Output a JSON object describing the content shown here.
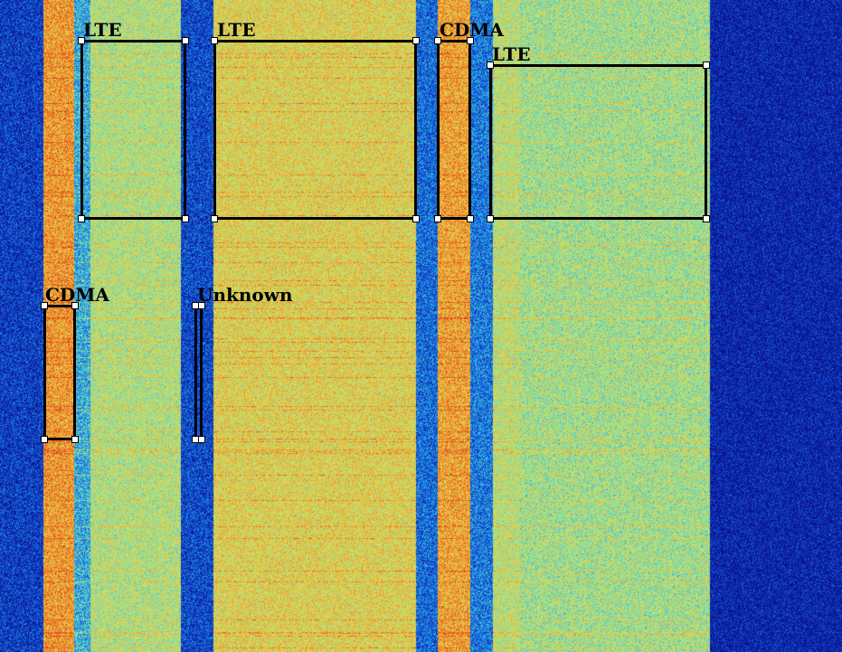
{
  "annotations": [
    {
      "label": "LTE"
    },
    {
      "label": "LTE"
    },
    {
      "label": "CDMA"
    },
    {
      "label": "LTE"
    },
    {
      "label": "CDMA"
    },
    {
      "label": "Unknown"
    }
  ],
  "colors": {
    "box_border": "#000000",
    "handle_fill": "#ffffff",
    "background_low": "#0a2ab0",
    "signal_mid": "#a8e07a",
    "signal_high": "#f0a030"
  }
}
